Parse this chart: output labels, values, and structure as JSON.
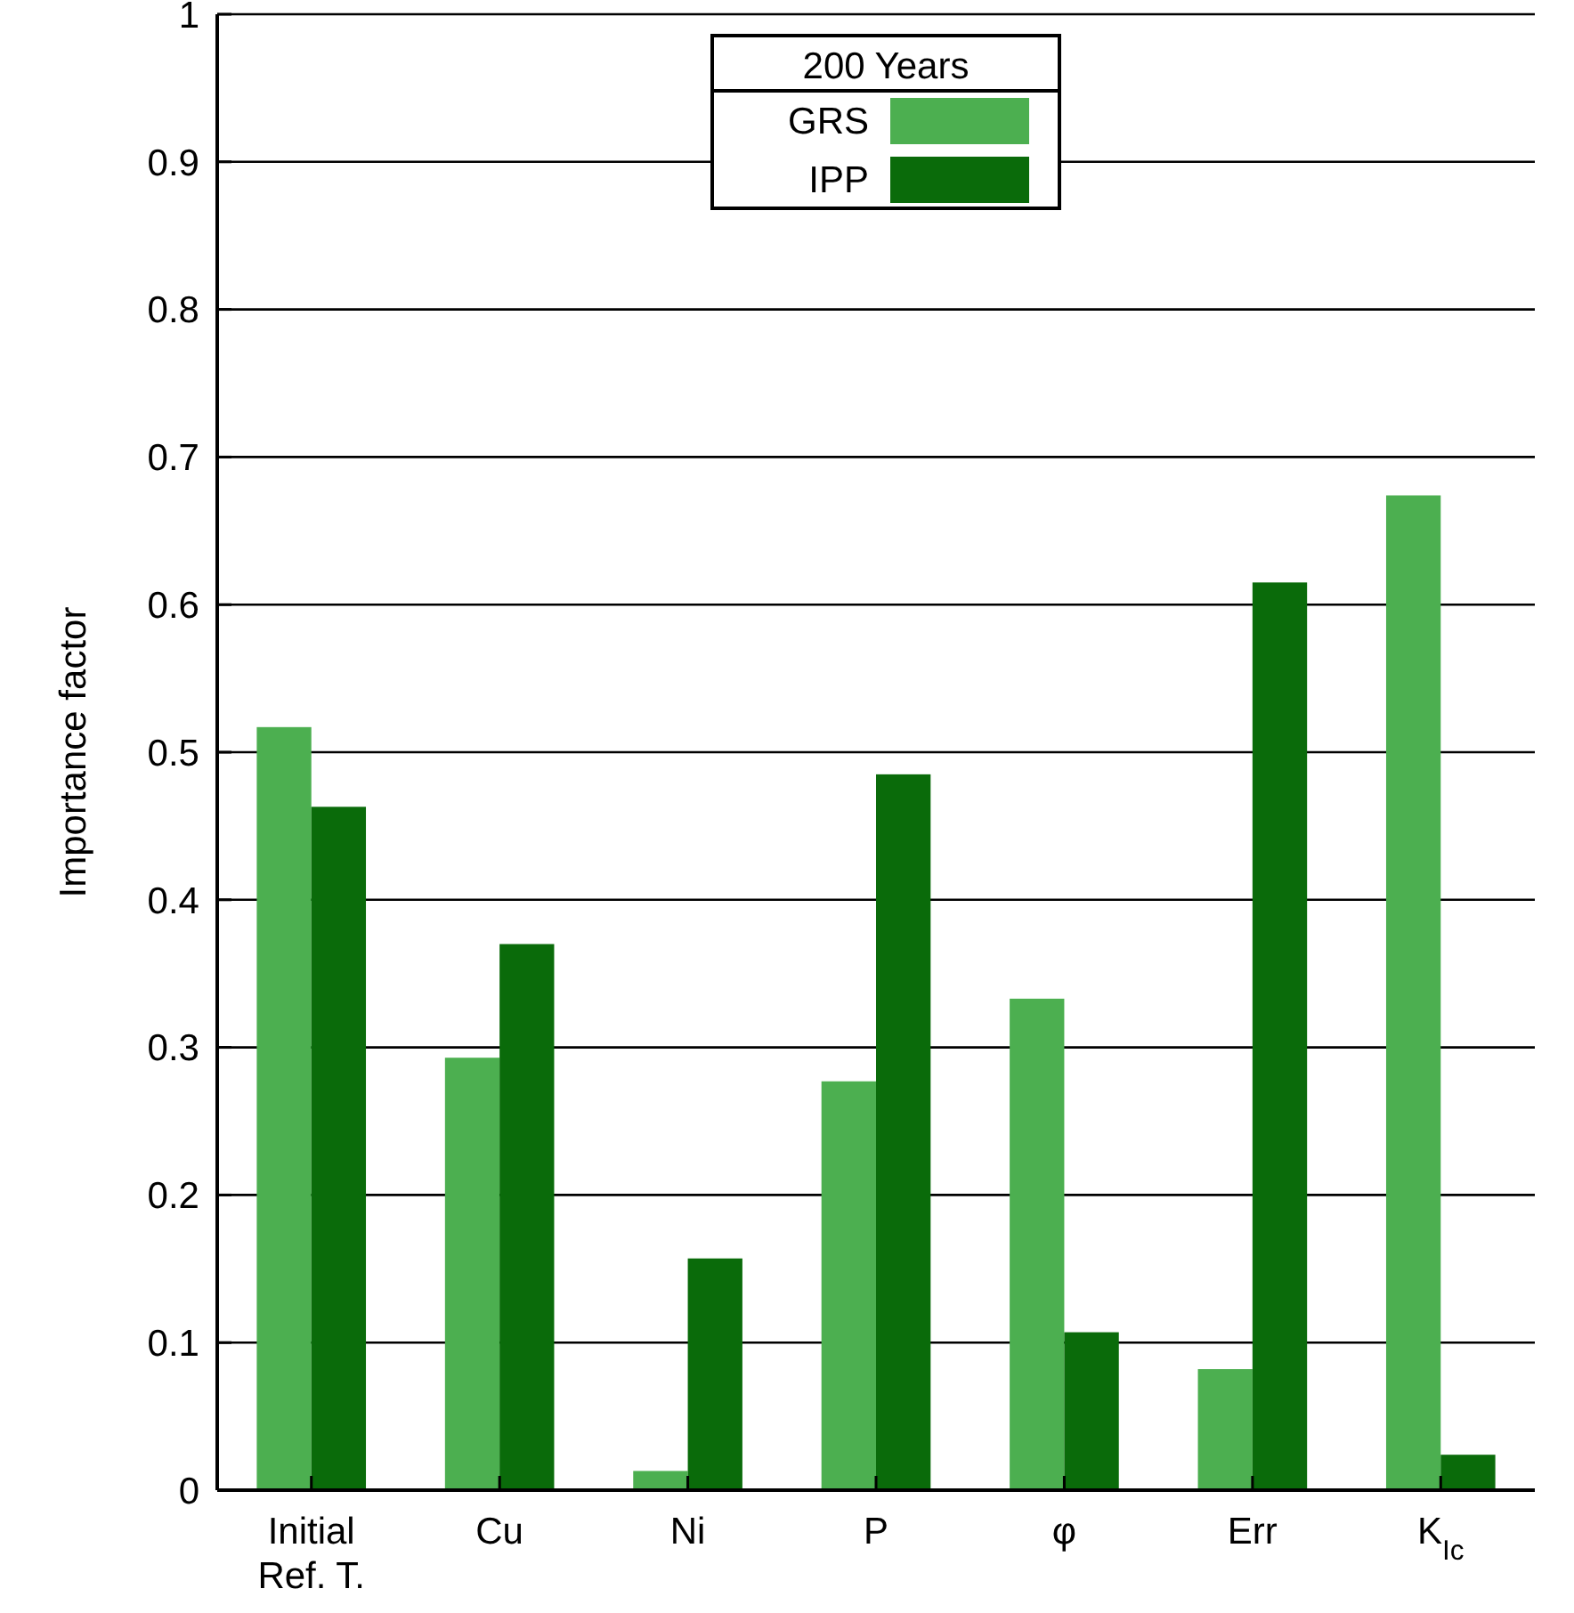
{
  "chart_data": {
    "type": "bar",
    "ylabel": "Importance factor",
    "legend_title": "200 Years",
    "categories": [
      "Initial\nRef. T.",
      "Cu",
      "Ni",
      "P",
      "φ",
      "Err",
      "K$_{Ic}$"
    ],
    "series": [
      {
        "name": "GRS",
        "color": "#4caf50",
        "values": [
          0.517,
          0.293,
          0.013,
          0.277,
          0.333,
          0.082,
          0.674
        ]
      },
      {
        "name": "IPP",
        "color": "#0a6b0a",
        "values": [
          0.463,
          0.37,
          0.157,
          0.485,
          0.107,
          0.615,
          0.024
        ]
      }
    ],
    "ylim": [
      0,
      1
    ],
    "yticks": [
      0,
      0.1,
      0.2,
      0.3,
      0.4,
      0.5,
      0.6,
      0.7,
      0.8,
      0.9,
      1
    ],
    "grid": "y",
    "legend": "top"
  }
}
